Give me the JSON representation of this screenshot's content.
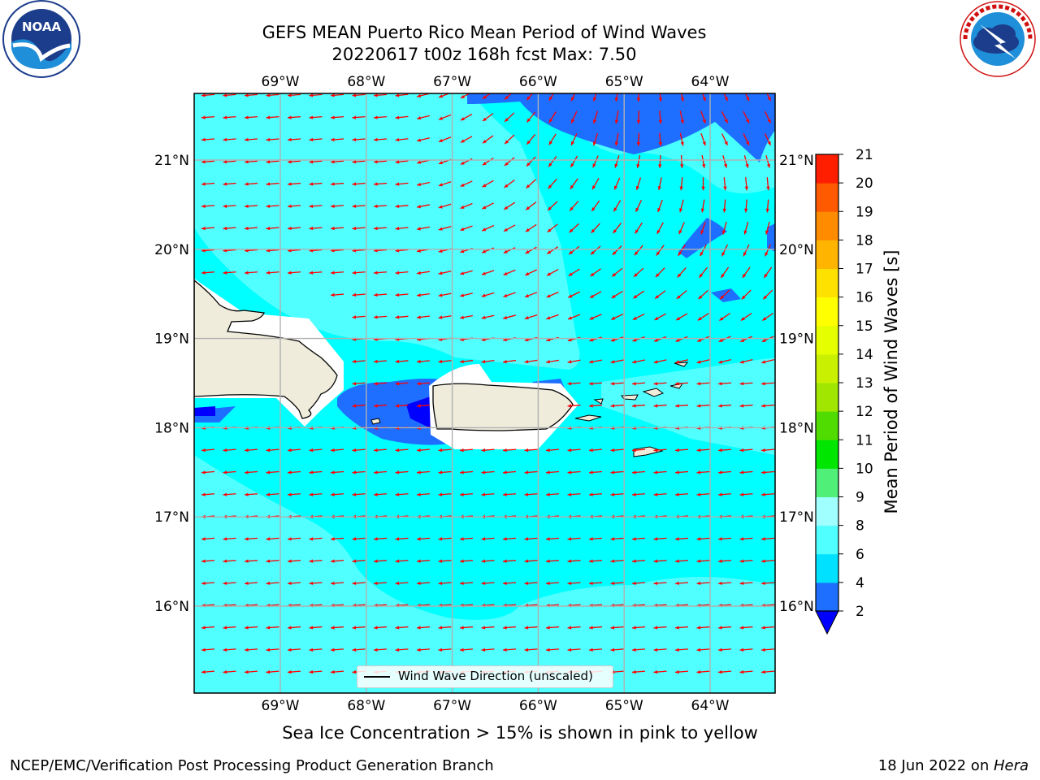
{
  "header": {
    "title_line1": "GEFS MEAN Puerto Rico Mean Period of Wind Waves",
    "title_line2": "20220617 t00z 168h fcst   Max: 7.50"
  },
  "logos": {
    "left": "NOAA",
    "left_ring": "NATIONAL OCEANIC AND ATMOSPHERIC ADMINISTRATION · U.S. DEPARTMENT OF COMMERCE",
    "right_ring": "NATIONAL WEATHER SERVICE"
  },
  "map": {
    "lon_labels": [
      "69°W",
      "68°W",
      "67°W",
      "66°W",
      "65°W",
      "64°W"
    ],
    "lat_labels": [
      "21°N",
      "20°N",
      "19°N",
      "18°N",
      "17°N",
      "16°N"
    ],
    "legend_label": "Wind Wave Direction (unscaled)",
    "arrow_color": "#ff0000",
    "land_color": "#efecdc",
    "background_color": "#00ffff"
  },
  "colorbar": {
    "label": "Mean Period of Wind Waves [s]",
    "ticks": [
      "2",
      "4",
      "6",
      "8",
      "9",
      "10",
      "11",
      "12",
      "13",
      "14",
      "15",
      "16",
      "17",
      "18",
      "19",
      "20",
      "21"
    ],
    "colors": [
      "#1e6eff",
      "#00e1ff",
      "#50ffff",
      "#a0ffff",
      "#50f078",
      "#00e600",
      "#50dc00",
      "#a0e600",
      "#c8f000",
      "#e6ff00",
      "#ffff00",
      "#ffe100",
      "#ffb400",
      "#ff8c00",
      "#ff5a00",
      "#ff1e00"
    ],
    "under_color": "#0000ff"
  },
  "footer": {
    "subtitle": "Sea Ice Concentration > 15% is shown in pink to yellow",
    "left": "NCEP/EMC/Verification Post Processing Product Generation Branch",
    "right_prefix": "18 Jun 2022 on ",
    "right_host": "Hera"
  }
}
